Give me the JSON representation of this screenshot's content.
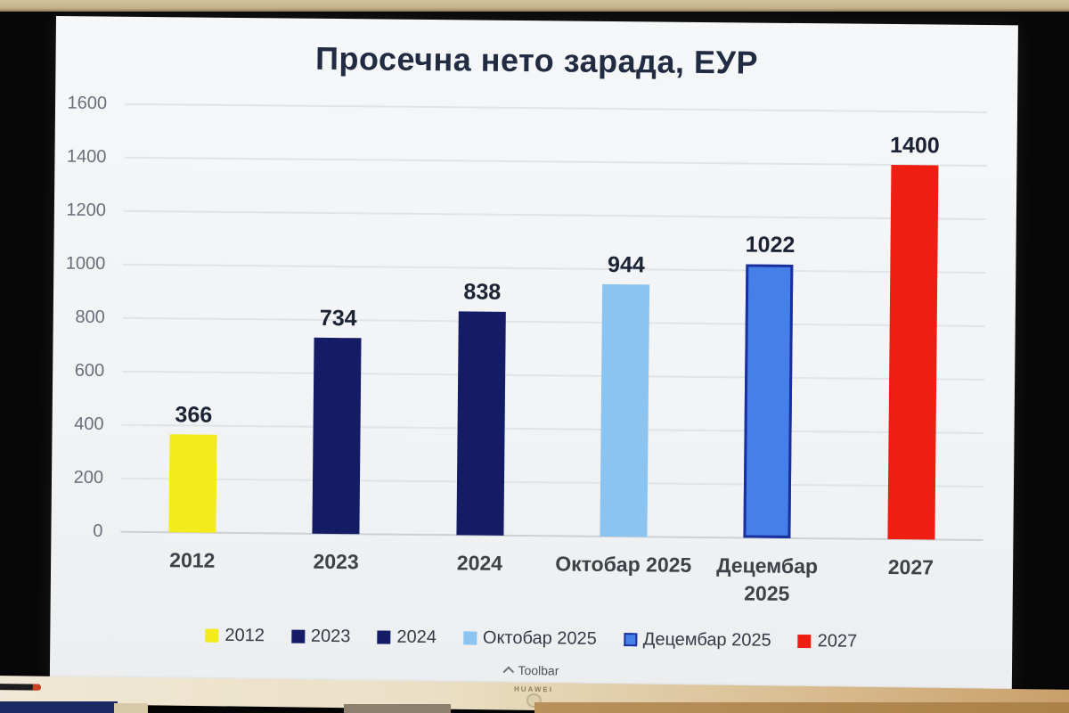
{
  "device": {
    "brand": "HUAWEI",
    "colors": {
      "bezel": "#070707",
      "top_frame": "#c9b88f",
      "tray": "#e8ddc2",
      "screen_bg": "#f3f5f6"
    }
  },
  "screen": {
    "toolbar_label": "Toolbar"
  },
  "chart_data": {
    "type": "bar",
    "title": "Просечна нето зарада, ЕУР",
    "title_color": "#212b42",
    "categories": [
      "2012",
      "2023",
      "2024",
      "Октобар 2025",
      "Децембар 2025",
      "2027"
    ],
    "values": [
      366,
      734,
      838,
      944,
      1022,
      1400
    ],
    "data_labels": [
      "366",
      "734",
      "838",
      "944",
      "1022",
      "1400"
    ],
    "series_colors": [
      "#f3eb1c",
      "#141c66",
      "#141c66",
      "#8bc4f1",
      "#4480e8",
      "#ee1f12"
    ],
    "series_borders": [
      "",
      "",
      "",
      "",
      "#1b2f9e",
      ""
    ],
    "xlabel": "",
    "ylabel": "",
    "ylim": [
      0,
      1600
    ],
    "yticks": [
      0,
      200,
      400,
      600,
      800,
      1000,
      1200,
      1400,
      1600
    ],
    "grid": true,
    "legend_position": "bottom",
    "legend_items": [
      {
        "label": "2012",
        "color": "#f3eb1c",
        "border": ""
      },
      {
        "label": "2023",
        "color": "#141c66",
        "border": ""
      },
      {
        "label": "2024",
        "color": "#141c66",
        "border": ""
      },
      {
        "label": "Октобар 2025",
        "color": "#8bc4f1",
        "border": ""
      },
      {
        "label": "Децембар 2025",
        "color": "#4480e8",
        "border": "#1b2f9e"
      },
      {
        "label": "2027",
        "color": "#ee1f12",
        "border": ""
      }
    ]
  }
}
